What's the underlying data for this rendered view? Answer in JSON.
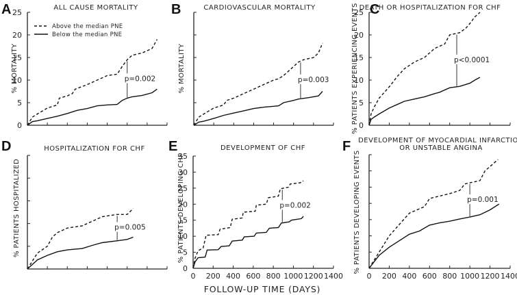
{
  "figure": {
    "xlabel": "FOLLOW-UP TIME (DAYS)",
    "legend": {
      "dashed": "Above the median PNE",
      "solid": "Below the median PNE"
    }
  },
  "chart_data": [
    {
      "panel": "A",
      "type": "line",
      "title": "ALL CAUSE MORTALITY",
      "ylabel": "% MORTALITY",
      "xlabel": "",
      "xlim": [
        0,
        1400
      ],
      "ylim": [
        0,
        25
      ],
      "yticks": [
        0,
        5,
        10,
        15,
        20,
        25
      ],
      "yticklabels_shown": true,
      "xticks": [
        0,
        200,
        400,
        600,
        800,
        1000,
        1200,
        1400
      ],
      "xticklabels_shown": false,
      "legend": "top-left",
      "annotation": {
        "text": "p=0.002",
        "x": 1000
      },
      "series": [
        {
          "name": "Above the median PNE",
          "style": "dashed",
          "x": [
            0,
            50,
            100,
            200,
            300,
            320,
            400,
            450,
            480,
            600,
            700,
            800,
            900,
            950,
            1000,
            1050,
            1150,
            1250,
            1300
          ],
          "y": [
            0,
            1.8,
            2.5,
            3.8,
            4.5,
            6,
            6.5,
            7,
            8,
            9,
            10,
            11,
            11.3,
            13,
            14.5,
            15.5,
            16,
            17,
            19
          ]
        },
        {
          "name": "Below the median PNE",
          "style": "solid",
          "x": [
            0,
            50,
            100,
            200,
            300,
            400,
            500,
            600,
            700,
            800,
            900,
            950,
            1000,
            1050,
            1150,
            1250,
            1300
          ],
          "y": [
            0,
            0.8,
            1,
            1.5,
            2,
            2.6,
            3.3,
            3.7,
            4.3,
            4.5,
            4.6,
            5.5,
            6,
            6.3,
            6.6,
            7.2,
            8
          ]
        }
      ]
    },
    {
      "panel": "B",
      "type": "line",
      "title": "CARDIOVASCULAR MORTALITY",
      "ylabel": "% MORTALITY",
      "xlabel": "",
      "xlim": [
        0,
        1400
      ],
      "ylim": [
        0,
        25
      ],
      "yticks": [
        0,
        5,
        10,
        15,
        20,
        25
      ],
      "yticklabels_shown": false,
      "xticks": [
        0,
        200,
        400,
        600,
        800,
        1000,
        1200,
        1400
      ],
      "xticklabels_shown": false,
      "annotation": {
        "text": "p=0.003",
        "x": 1070
      },
      "series": [
        {
          "name": "Above the median PNE",
          "style": "dashed",
          "x": [
            0,
            50,
            100,
            200,
            300,
            330,
            400,
            500,
            600,
            700,
            800,
            850,
            900,
            1000,
            1050,
            1100,
            1200,
            1250,
            1290
          ],
          "y": [
            0,
            1.8,
            2.5,
            3.8,
            4.5,
            5.5,
            6,
            7,
            8,
            9,
            10,
            10.3,
            11,
            13,
            14,
            14.5,
            15,
            16,
            18.2
          ]
        },
        {
          "name": "Below the median PNE",
          "style": "solid",
          "x": [
            0,
            50,
            100,
            200,
            300,
            400,
            500,
            600,
            700,
            800,
            850,
            900,
            1000,
            1050,
            1150,
            1250,
            1290
          ],
          "y": [
            0,
            0.7,
            0.9,
            1.5,
            2.2,
            2.7,
            3.2,
            3.7,
            4,
            4.2,
            4.3,
            5,
            5.5,
            5.8,
            6.1,
            6.5,
            7.5
          ]
        }
      ]
    },
    {
      "panel": "C",
      "type": "line",
      "title": "DEATH OR HOSPITALIZATION FOR CHF",
      "ylabel": "% PATIENTS EXPERIENCING EVENTS",
      "xlabel": "",
      "xlim": [
        0,
        1400
      ],
      "ylim": [
        0,
        25
      ],
      "yticks": [
        0,
        5,
        10,
        15,
        20,
        25
      ],
      "yticklabels_shown": true,
      "xticks": [
        0,
        200,
        400,
        600,
        800,
        1000,
        1200,
        1400
      ],
      "xticklabels_shown": false,
      "annotation": {
        "text": "p<0.0001",
        "x": 870
      },
      "series": [
        {
          "name": "Above the median PNE",
          "style": "dashed",
          "x": [
            0,
            20,
            50,
            100,
            200,
            280,
            350,
            450,
            550,
            650,
            750,
            800,
            900,
            960,
            1000,
            1050,
            1100
          ],
          "y": [
            0,
            2.5,
            4,
            6,
            8.5,
            10.8,
            12.5,
            14,
            15,
            17,
            18,
            20,
            20.5,
            21.5,
            22.5,
            24,
            25
          ]
        },
        {
          "name": "Below the median PNE",
          "style": "solid",
          "x": [
            0,
            20,
            50,
            100,
            200,
            300,
            350,
            450,
            550,
            650,
            700,
            800,
            900,
            1000,
            1050,
            1100
          ],
          "y": [
            0,
            1.3,
            1.8,
            2.5,
            3.8,
            4.8,
            5.3,
            5.8,
            6.3,
            7,
            7.3,
            8.3,
            8.6,
            9.3,
            10,
            10.6
          ]
        }
      ]
    },
    {
      "panel": "D",
      "type": "line",
      "title": "HOSPITALIZATION FOR CHF",
      "ylabel": "% PATIENTS HOSPITALIZED",
      "xlabel": "",
      "xlim": [
        0,
        1400
      ],
      "ylim": [
        0,
        25
      ],
      "yticks": [
        0,
        5,
        10,
        15,
        20,
        25
      ],
      "yticklabels_shown": false,
      "xticks": [
        0,
        200,
        400,
        600,
        800,
        1000,
        1200,
        1400
      ],
      "xticklabels_shown": false,
      "annotation": {
        "text": "p=0.005",
        "x": 900
      },
      "series": [
        {
          "name": "Above the median PNE",
          "style": "dashed",
          "x": [
            0,
            100,
            200,
            250,
            300,
            400,
            550,
            650,
            750,
            900,
            1000,
            1060
          ],
          "y": [
            0,
            3.5,
            5,
            7,
            8,
            9,
            9.5,
            10.5,
            11.5,
            12,
            12,
            13.3
          ]
        },
        {
          "name": "Below the median PNE",
          "style": "solid",
          "x": [
            0,
            100,
            200,
            300,
            400,
            550,
            650,
            750,
            900,
            1000,
            1060
          ],
          "y": [
            0,
            2,
            3,
            3.8,
            4.2,
            4.5,
            5.2,
            5.8,
            6.2,
            6.5,
            7
          ]
        }
      ]
    },
    {
      "panel": "E",
      "type": "line",
      "title": "DEVELOPMENT OF CHF",
      "ylabel": "% PATIENTS DEVELOPING CHF",
      "xlabel": "FOLLOW-UP TIME (DAYS)",
      "xlim": [
        0,
        1400
      ],
      "ylim": [
        0,
        35
      ],
      "yticks": [
        0,
        5,
        10,
        15,
        20,
        25,
        30,
        35
      ],
      "yticklabels_shown": true,
      "xticks": [
        0,
        200,
        400,
        600,
        800,
        1000,
        1200,
        1400
      ],
      "xticklabels_shown": true,
      "annotation": {
        "text": "p=0.002",
        "x": 890
      },
      "series": [
        {
          "name": "Above the median PNE",
          "style": "dashed",
          "x": [
            0,
            20,
            50,
            100,
            130,
            250,
            270,
            370,
            390,
            490,
            500,
            620,
            630,
            730,
            750,
            850,
            870,
            950,
            970,
            1070,
            1100
          ],
          "y": [
            0,
            3.2,
            5.5,
            6.3,
            10.3,
            10.5,
            12.2,
            12.7,
            15.3,
            15.7,
            17.5,
            17.8,
            19.7,
            20,
            22,
            22.5,
            24.8,
            25.3,
            26.3,
            26.7,
            27.3
          ]
        },
        {
          "name": "Below the median PNE",
          "style": "solid",
          "x": [
            0,
            20,
            50,
            120,
            140,
            250,
            280,
            360,
            390,
            490,
            510,
            610,
            630,
            730,
            760,
            850,
            880,
            960,
            980,
            1080,
            1100
          ],
          "y": [
            0,
            2,
            3.3,
            3.5,
            5.7,
            5.8,
            6.8,
            7,
            8.5,
            8.8,
            9.8,
            10,
            11,
            11.2,
            12.5,
            12.7,
            14.1,
            14.5,
            15,
            15.5,
            16.2
          ]
        }
      ]
    },
    {
      "panel": "F",
      "type": "line",
      "title": "DEVELOPMENT OF MYOCARDIAL INFARCTION OR UNSTABLE ANGINA",
      "ylabel": "% PATIENTS DEVELOPING EVENTS",
      "xlabel": "",
      "xlim": [
        0,
        1400
      ],
      "ylim": [
        0,
        35
      ],
      "yticks": [
        0,
        5,
        10,
        15,
        20,
        25,
        30,
        35
      ],
      "yticklabels_shown": false,
      "xticks": [
        0,
        200,
        400,
        600,
        800,
        1000,
        1200,
        1400
      ],
      "xticklabels_shown": true,
      "annotation": {
        "text": "p=0.001",
        "x": 1000
      },
      "series": [
        {
          "name": "Above the median PNE",
          "style": "dashed",
          "x": [
            0,
            100,
            200,
            300,
            400,
            550,
            600,
            800,
            900,
            950,
            1100,
            1150,
            1280
          ],
          "y": [
            0,
            5,
            10,
            13.5,
            17,
            19,
            21.5,
            23,
            24,
            26,
            27,
            30,
            33.5
          ]
        },
        {
          "name": "Below the median PNE",
          "style": "solid",
          "x": [
            0,
            100,
            200,
            300,
            400,
            500,
            600,
            700,
            800,
            900,
            1000,
            1100,
            1200,
            1290
          ],
          "y": [
            0,
            4,
            6.5,
            8.5,
            10.5,
            11.5,
            13.3,
            14,
            14.5,
            15.2,
            15.8,
            16.5,
            18,
            19.8
          ]
        }
      ]
    }
  ]
}
